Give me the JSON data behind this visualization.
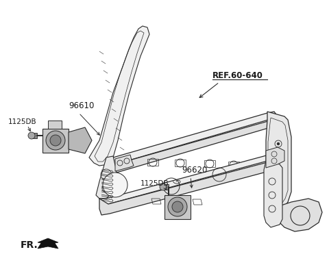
{
  "background_color": "#ffffff",
  "figure_width": 4.8,
  "figure_height": 3.87,
  "dpi": 100,
  "line_color": "#2a2a2a",
  "text_color": "#1a1a1a",
  "label_96610": "96610",
  "label_1125DB_top": "1125DB",
  "label_96620": "96620",
  "label_1125DB_bot": "1125DB",
  "label_ref": "REF.60-640",
  "label_fr": "FR.",
  "gray_light": "#c8c8c8",
  "gray_mid": "#a8a8a8",
  "gray_dark": "#888888"
}
